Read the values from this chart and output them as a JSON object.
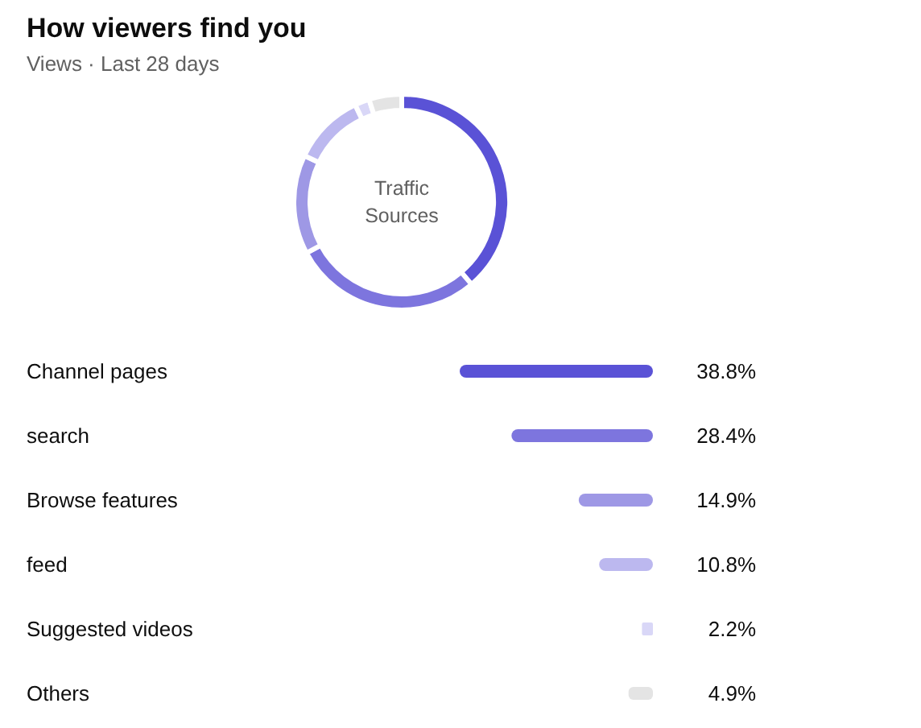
{
  "chart_data": [
    {
      "type": "donut",
      "title": "How viewers find you",
      "subtitle": "Views · Last 28 days",
      "annotations": [
        "Traffic Sources"
      ],
      "categories": [
        null,
        null,
        null,
        null,
        null,
        null
      ],
      "values": [
        38.8,
        28.4,
        14.9,
        10.8,
        2.2,
        4.9
      ],
      "colors": [
        "#5a52d6",
        "#7d75de",
        "#9e98e5",
        "#bcb8ef",
        "#d9d7f7",
        "#e4e4e4"
      ]
    },
    {
      "type": "bar",
      "orientation": "horizontal",
      "tick_labels": false,
      "categories": [
        "Channel pages",
        "search",
        "Browse features",
        "feed",
        "Suggested videos",
        "Others"
      ],
      "values": [
        38.8,
        28.4,
        14.9,
        10.8,
        2.2,
        4.9
      ],
      "colors": [
        "#5a52d6",
        "#7d75de",
        "#9e98e5",
        "#bcb8ef",
        "#d9d7f7",
        "#e4e4e4"
      ],
      "value_labels": [
        "38.8%",
        "28.4%",
        "14.9%",
        "10.8%",
        "2.2%",
        "4.9%"
      ]
    }
  ]
}
